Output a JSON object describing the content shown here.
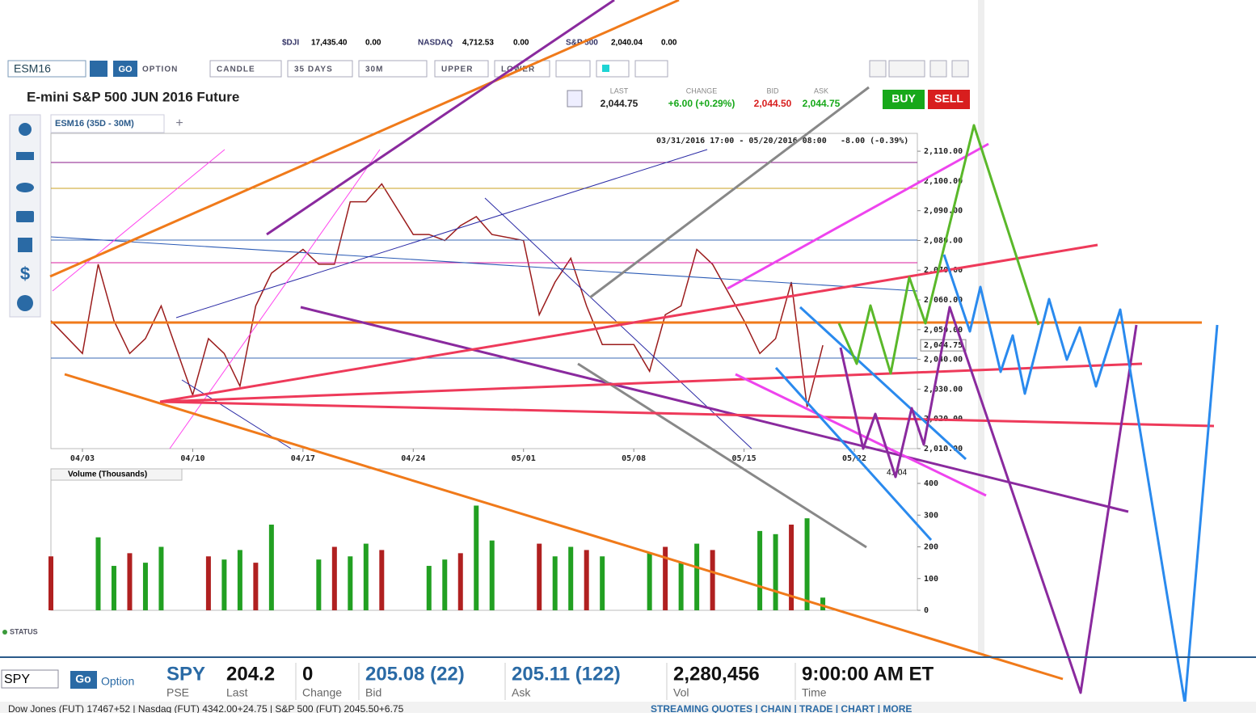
{
  "ticker_bar": [
    {
      "symbol": "$DJI",
      "value": "17,435.40",
      "change": "0.00"
    },
    {
      "symbol": "NASDAQ",
      "value": "4,712.53",
      "change": "0.00"
    },
    {
      "symbol": "S&P 500",
      "value": "2,040.04",
      "change": "0.00"
    }
  ],
  "toolbar": {
    "symbol": "ESM16",
    "go": "GO",
    "option": "OPTION",
    "style": "CANDLE",
    "range": "35 DAYS",
    "interval": "30M",
    "upper": "UPPER",
    "lower": "LOWER"
  },
  "header": {
    "title": "E-mini S&P 500 JUN 2016 Future",
    "quotes": [
      {
        "label": "LAST",
        "value": "2,044.75"
      },
      {
        "label": "CHANGE",
        "value": "+6.00 (+0.29%)"
      },
      {
        "label": "BID",
        "value": "2,044.50"
      },
      {
        "label": "ASK",
        "value": "2,044.75"
      }
    ],
    "buy": "BUY",
    "sell": "SELL"
  },
  "tab": "ESM16 (35D - 30M)",
  "status": "STATUS",
  "chart_data": [
    {
      "type": "line",
      "subtitle": "03/31/2016 17:00 - 05/20/2016 08:00",
      "change": "-8.00 (-0.39%)",
      "color": "#9b1c1c",
      "x": [
        "04/01",
        "04/03",
        "04/04",
        "04/05",
        "04/06",
        "04/07",
        "04/08",
        "04/10",
        "04/11",
        "04/12",
        "04/13",
        "04/14",
        "04/15",
        "04/17",
        "04/18",
        "04/19",
        "04/20",
        "04/21",
        "04/22",
        "04/24",
        "04/25",
        "04/26",
        "04/27",
        "04/28",
        "04/29",
        "05/01",
        "05/02",
        "05/03",
        "05/04",
        "05/05",
        "05/06",
        "05/08",
        "05/09",
        "05/10",
        "05/11",
        "05/12",
        "05/13",
        "05/15",
        "05/16",
        "05/17",
        "05/18",
        "05/19",
        "05/20"
      ],
      "values": [
        2053,
        2042,
        2072,
        2053,
        2042,
        2047,
        2058,
        2028,
        2047,
        2042,
        2031,
        2058,
        2069,
        2077,
        2072,
        2072,
        2093,
        2093,
        2099,
        2082,
        2082,
        2080,
        2085,
        2088,
        2082,
        2080,
        2055,
        2066,
        2074,
        2058,
        2045,
        2045,
        2036,
        2055,
        2058,
        2077,
        2072,
        2053,
        2042,
        2047,
        2066,
        2024,
        2044.75
      ],
      "xlim": [
        "04/01",
        "05/26"
      ],
      "xticks": [
        "04/03",
        "04/10",
        "04/17",
        "04/24",
        "05/01",
        "05/08",
        "05/15",
        "05/22"
      ],
      "ylim": [
        2010,
        2116
      ],
      "yticks": [
        {
          "value": 2010,
          "label": "2,010.00"
        },
        {
          "value": 2020,
          "label": "2,020.00"
        },
        {
          "value": 2030,
          "label": "2,030.00"
        },
        {
          "value": 2040,
          "label": "2,040.00"
        },
        {
          "value": 2050,
          "label": "2,050.00"
        },
        {
          "value": 2060,
          "label": "2,060.00"
        },
        {
          "value": 2070,
          "label": "2,070.00"
        },
        {
          "value": 2080,
          "label": "2,080.00"
        },
        {
          "value": 2090,
          "label": "2,090.00"
        },
        {
          "value": 2100,
          "label": "2,100.00"
        },
        {
          "value": 2110,
          "label": "2,110.00"
        }
      ],
      "last": {
        "value": 2044.75,
        "label": "2,044.75"
      }
    },
    {
      "type": "bar",
      "title": "Volume (Thousands)",
      "annotation": "41.04",
      "color": "#22a022",
      "x": [
        "04/01",
        "04/04",
        "04/05",
        "04/06",
        "04/07",
        "04/08",
        "04/11",
        "04/12",
        "04/13",
        "04/14",
        "04/15",
        "04/18",
        "04/19",
        "04/20",
        "04/21",
        "04/22",
        "04/25",
        "04/26",
        "04/27",
        "04/28",
        "04/29",
        "05/02",
        "05/03",
        "05/04",
        "05/05",
        "05/06",
        "05/09",
        "05/10",
        "05/11",
        "05/12",
        "05/13",
        "05/16",
        "05/17",
        "05/18",
        "05/19",
        "05/20"
      ],
      "values": [
        170,
        230,
        140,
        180,
        150,
        200,
        170,
        160,
        190,
        150,
        270,
        160,
        200,
        170,
        210,
        190,
        140,
        160,
        180,
        330,
        220,
        210,
        170,
        200,
        190,
        170,
        180,
        200,
        150,
        210,
        190,
        250,
        240,
        270,
        290,
        40
      ],
      "ylim": [
        0,
        400
      ],
      "yticks": [
        0,
        100,
        200,
        300,
        400
      ]
    }
  ],
  "bottom_bar": {
    "input": "SPY",
    "go": "Go",
    "option": "Option",
    "symbol": "SPY",
    "exchange": "PSE",
    "fields": [
      {
        "value": "204.2",
        "label": "Last"
      },
      {
        "value": "0",
        "label": "Change"
      },
      {
        "value": "205.08 (22)",
        "label": "Bid"
      },
      {
        "value": "205.11 (122)",
        "label": "Ask"
      },
      {
        "value": "2,280,456",
        "label": "Vol"
      },
      {
        "value": "9:00:00 AM ET",
        "label": "Time"
      }
    ],
    "ticker": "Dow Jones (FUT) 17467+52 | Nasdaq (FUT) 4342.00+24.75 | S&P 500 (FUT) 2045.50+6.75",
    "links": "STREAMING QUOTES | CHAIN | TRADE | CHART | MORE"
  }
}
